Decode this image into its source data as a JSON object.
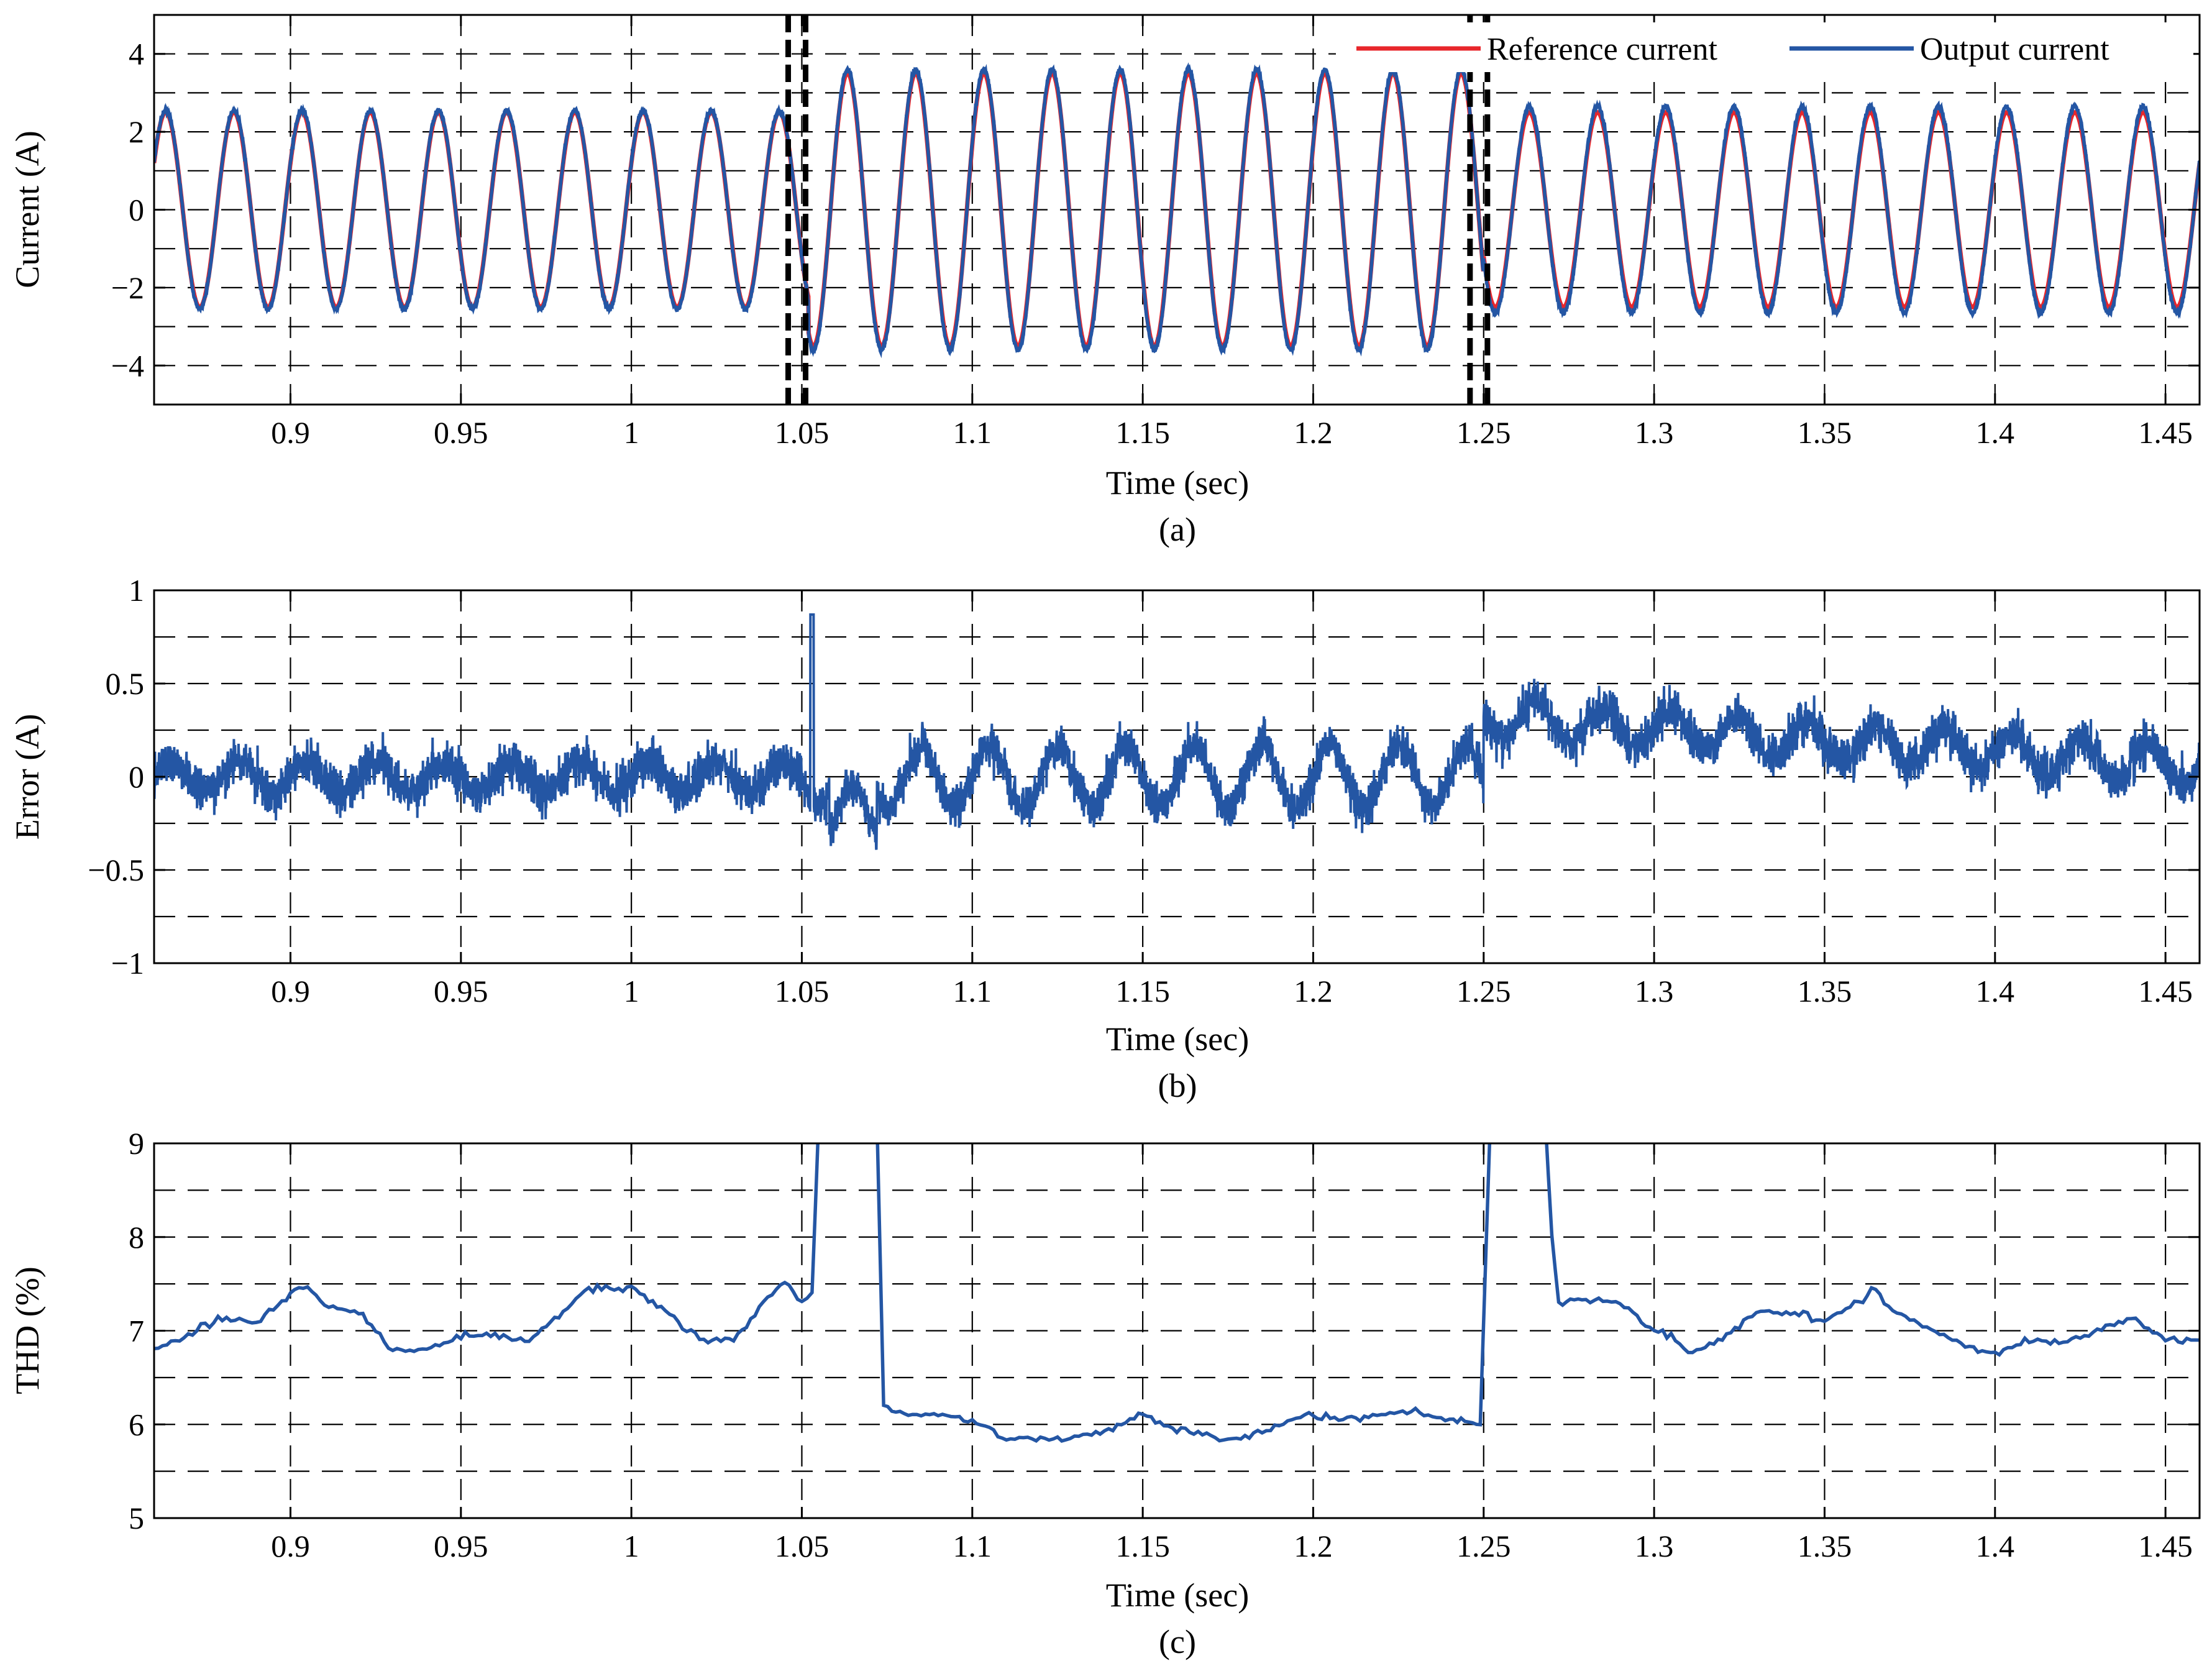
{
  "colors": {
    "reference": "#e8262b",
    "output": "#2456a4",
    "axis": "#000000"
  },
  "chart_data": [
    {
      "type": "line",
      "panel": "(a)",
      "xlabel": "Time (sec)",
      "ylabel": "Current (A)",
      "xlim": [
        0.86,
        1.46
      ],
      "ylim": [
        -5,
        5
      ],
      "xticks": [
        0.9,
        0.95,
        1,
        1.05,
        1.1,
        1.15,
        1.2,
        1.25,
        1.3,
        1.35,
        1.4,
        1.45
      ],
      "xtick_labels": [
        "0.9",
        "0.95",
        "1",
        "1.05",
        "1.1",
        "1.15",
        "1.2",
        "1.25",
        "1.3",
        "1.35",
        "1.4",
        "1.45"
      ],
      "yticks": [
        -4,
        -2,
        0,
        2,
        4
      ],
      "ytick_labels": [
        "−4",
        "−2",
        "0",
        "2",
        "4"
      ],
      "grid": true,
      "legend_position": "top-right",
      "frequency_hz": 50,
      "event_lines_x": [
        1.046,
        1.246
      ],
      "series": [
        {
          "name": "Reference current",
          "color": "#e8262b",
          "segments": [
            {
              "x": [
                0.86,
                1.052
              ],
              "amplitude": 2.5
            },
            {
              "x": [
                1.052,
                1.25
              ],
              "amplitude": 3.5
            },
            {
              "x": [
                1.25,
                1.46
              ],
              "amplitude": 2.5
            }
          ]
        },
        {
          "name": "Output current",
          "color": "#2456a4",
          "segments": [
            {
              "x": [
                0.86,
                1.052
              ],
              "amplitude": 2.55
            },
            {
              "x": [
                1.052,
                1.25
              ],
              "amplitude": 3.6
            },
            {
              "x": [
                1.25,
                1.46
              ],
              "amplitude": 2.65
            }
          ]
        }
      ]
    },
    {
      "type": "line",
      "panel": "(b)",
      "xlabel": "Time (sec)",
      "ylabel": "Error (A)",
      "xlim": [
        0.86,
        1.46
      ],
      "ylim": [
        -1,
        1
      ],
      "xticks": [
        0.9,
        0.95,
        1,
        1.05,
        1.1,
        1.15,
        1.2,
        1.25,
        1.3,
        1.35,
        1.4,
        1.45
      ],
      "xtick_labels": [
        "0.9",
        "0.95",
        "1",
        "1.05",
        "1.1",
        "1.15",
        "1.2",
        "1.25",
        "1.3",
        "1.35",
        "1.4",
        "1.45"
      ],
      "yticks": [
        -1,
        -0.5,
        0,
        0.5,
        1
      ],
      "ytick_labels": [
        "−1",
        "−0.5",
        "0",
        "0.5",
        "1"
      ],
      "grid": true,
      "series": [
        {
          "color": "#2456a4",
          "envelope": [
            {
              "x": [
                0.86,
                1.05
              ],
              "mean": 0.0,
              "ripple": 0.08,
              "noise": 0.13
            },
            {
              "x": [
                1.05,
                1.25
              ],
              "mean": 0.0,
              "ripple": 0.17,
              "noise": 0.12
            },
            {
              "x": [
                1.25,
                1.46
              ],
              "mean_start": 0.32,
              "mean_end": 0.06,
              "ripple": 0.1,
              "noise": 0.13
            }
          ],
          "spike": {
            "x": 1.053,
            "y": 0.87
          },
          "dip": {
            "x": 1.065,
            "y": -0.55
          }
        }
      ]
    },
    {
      "type": "line",
      "panel": "(c)",
      "xlabel": "Time (sec)",
      "ylabel": "THD (%)",
      "xlim": [
        0.86,
        1.46
      ],
      "ylim": [
        5,
        9
      ],
      "xticks": [
        0.9,
        0.95,
        1,
        1.05,
        1.1,
        1.15,
        1.2,
        1.25,
        1.3,
        1.35,
        1.4,
        1.45
      ],
      "xtick_labels": [
        "0.9",
        "0.95",
        "1",
        "1.05",
        "1.1",
        "1.15",
        "1.2",
        "1.25",
        "1.3",
        "1.35",
        "1.4",
        "1.45"
      ],
      "yticks": [
        5,
        6,
        7,
        8,
        9
      ],
      "ytick_labels": [
        "5",
        "6",
        "7",
        "8",
        "9"
      ],
      "grid": true,
      "series": [
        {
          "color": "#2456a4",
          "x": [
            0.86,
            0.87,
            0.88,
            0.89,
            0.9,
            0.905,
            0.91,
            0.92,
            0.93,
            0.94,
            0.95,
            0.96,
            0.97,
            0.98,
            0.985,
            0.99,
            1.0,
            1.01,
            1.02,
            1.03,
            1.04,
            1.045,
            1.05,
            1.053,
            1.055,
            1.072,
            1.074,
            1.08,
            1.09,
            1.1,
            1.11,
            1.12,
            1.13,
            1.14,
            1.15,
            1.16,
            1.17,
            1.18,
            1.19,
            1.2,
            1.21,
            1.22,
            1.23,
            1.24,
            1.249,
            1.252,
            1.254,
            1.268,
            1.27,
            1.272,
            1.28,
            1.29,
            1.3,
            1.305,
            1.31,
            1.32,
            1.33,
            1.34,
            1.35,
            1.36,
            1.365,
            1.37,
            1.38,
            1.39,
            1.4,
            1.41,
            1.42,
            1.43,
            1.44,
            1.45,
            1.46
          ],
          "y": [
            6.8,
            6.95,
            7.15,
            7.1,
            7.4,
            7.5,
            7.25,
            7.2,
            6.8,
            6.8,
            6.95,
            6.95,
            6.9,
            7.2,
            7.4,
            7.45,
            7.45,
            7.2,
            6.9,
            6.9,
            7.35,
            7.5,
            7.3,
            7.4,
            9.3,
            9.3,
            6.2,
            6.1,
            6.1,
            6.05,
            5.85,
            5.85,
            5.85,
            5.95,
            6.1,
            5.95,
            5.85,
            5.85,
            6.0,
            6.1,
            6.05,
            6.1,
            6.15,
            6.05,
            6.0,
            9.3,
            9.3,
            9.3,
            8.0,
            7.3,
            7.35,
            7.3,
            7.0,
            6.95,
            6.75,
            6.9,
            7.2,
            7.2,
            7.1,
            7.3,
            7.45,
            7.2,
            7.05,
            6.85,
            6.75,
            6.9,
            6.85,
            7.0,
            7.15,
            6.9,
            6.9
          ]
        }
      ]
    }
  ],
  "panels": [
    {
      "sub": "(a)",
      "xlabel": "Time (sec)",
      "ylabel": "Current (A)"
    },
    {
      "sub": "(b)",
      "xlabel": "Time (sec)",
      "ylabel": "Error (A)"
    },
    {
      "sub": "(c)",
      "xlabel": "Time (sec)",
      "ylabel": "THD (%)"
    }
  ],
  "legend": {
    "reference": "Reference current",
    "output": "Output current"
  }
}
